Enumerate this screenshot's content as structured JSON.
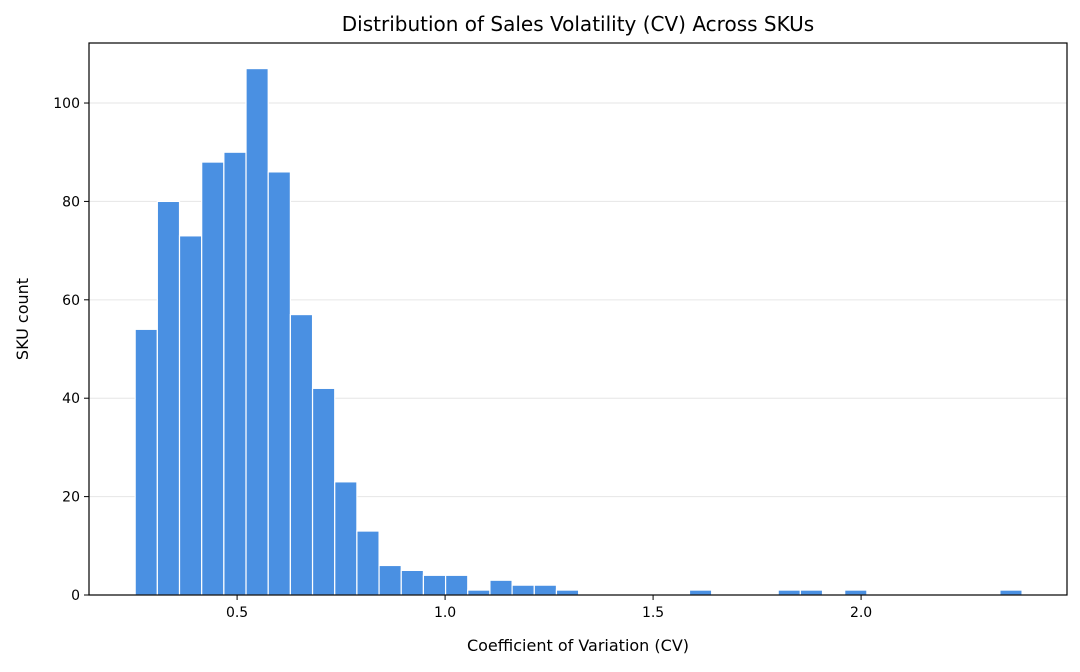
{
  "chart_data": {
    "type": "bar",
    "title": "Distribution of Sales Volatility (CV) Across SKUs",
    "xlabel": "Coefficient of Variation (CV)",
    "ylabel": "SKU count",
    "xlim": [
      0.144,
      2.495
    ],
    "ylim": [
      0,
      112.2
    ],
    "xticks": [
      0.5,
      1.0,
      1.5,
      2.0
    ],
    "xtick_labels": [
      "0.5",
      "1.0",
      "1.5",
      "2.0"
    ],
    "yticks": [
      0,
      20,
      40,
      60,
      80,
      100
    ],
    "ytick_labels": [
      "0",
      "20",
      "40",
      "60",
      "80",
      "100"
    ],
    "grid": "y-only",
    "bin_start": 0.255,
    "bin_width": 0.0533,
    "counts": [
      54,
      80,
      73,
      88,
      90,
      107,
      86,
      57,
      42,
      23,
      13,
      6,
      5,
      4,
      4,
      1,
      3,
      2,
      2,
      1,
      0,
      0,
      0,
      0,
      0,
      1,
      0,
      0,
      0,
      1,
      1,
      0,
      1,
      0,
      0,
      0,
      0,
      0,
      0,
      1
    ],
    "bar_color": "#4a90e2",
    "edge_color": "#ffffff"
  }
}
